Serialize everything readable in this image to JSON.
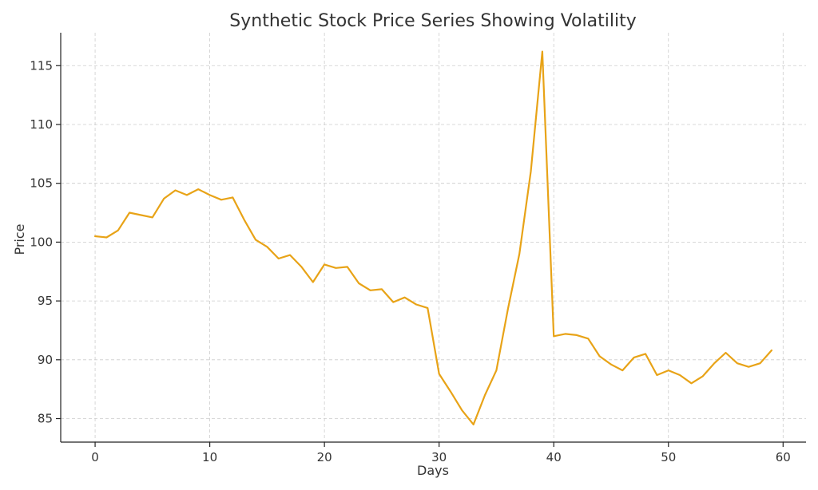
{
  "chart_data": {
    "type": "line",
    "title": "Synthetic Stock Price Series Showing Volatility",
    "xlabel": "Days",
    "ylabel": "Price",
    "xlim": [
      -3,
      62
    ],
    "ylim": [
      83,
      117.8
    ],
    "x_ticks": [
      0,
      10,
      20,
      30,
      40,
      50,
      60
    ],
    "y_ticks": [
      85,
      90,
      95,
      100,
      105,
      110,
      115
    ],
    "grid": true,
    "series": [
      {
        "name": "Price",
        "color": "#E8A317",
        "x": [
          0,
          1,
          2,
          3,
          4,
          5,
          6,
          7,
          8,
          9,
          10,
          11,
          12,
          13,
          14,
          15,
          16,
          17,
          18,
          19,
          20,
          21,
          22,
          23,
          24,
          25,
          26,
          27,
          28,
          29,
          30,
          31,
          32,
          33,
          34,
          35,
          36,
          37,
          38,
          39,
          40,
          41,
          42,
          43,
          44,
          45,
          46,
          47,
          48,
          49,
          50,
          51,
          52,
          53,
          54,
          55,
          56,
          57,
          58,
          59
        ],
        "values": [
          100.5,
          100.4,
          101.0,
          102.5,
          102.3,
          102.1,
          103.7,
          104.4,
          104.0,
          104.5,
          104.0,
          103.6,
          103.8,
          101.9,
          100.2,
          99.6,
          98.6,
          98.9,
          97.9,
          96.6,
          98.1,
          97.8,
          97.9,
          96.5,
          95.9,
          96.0,
          94.9,
          95.3,
          94.7,
          94.4,
          88.8,
          87.3,
          85.7,
          84.5,
          87.0,
          89.1,
          94.3,
          99.0,
          106.0,
          116.2,
          92.0,
          92.2,
          92.1,
          91.8,
          90.3,
          89.6,
          89.1,
          90.2,
          90.5,
          88.7,
          89.1,
          88.7,
          88.0,
          88.6,
          89.7,
          90.6,
          89.7,
          89.4,
          89.7,
          90.8
        ]
      }
    ]
  }
}
